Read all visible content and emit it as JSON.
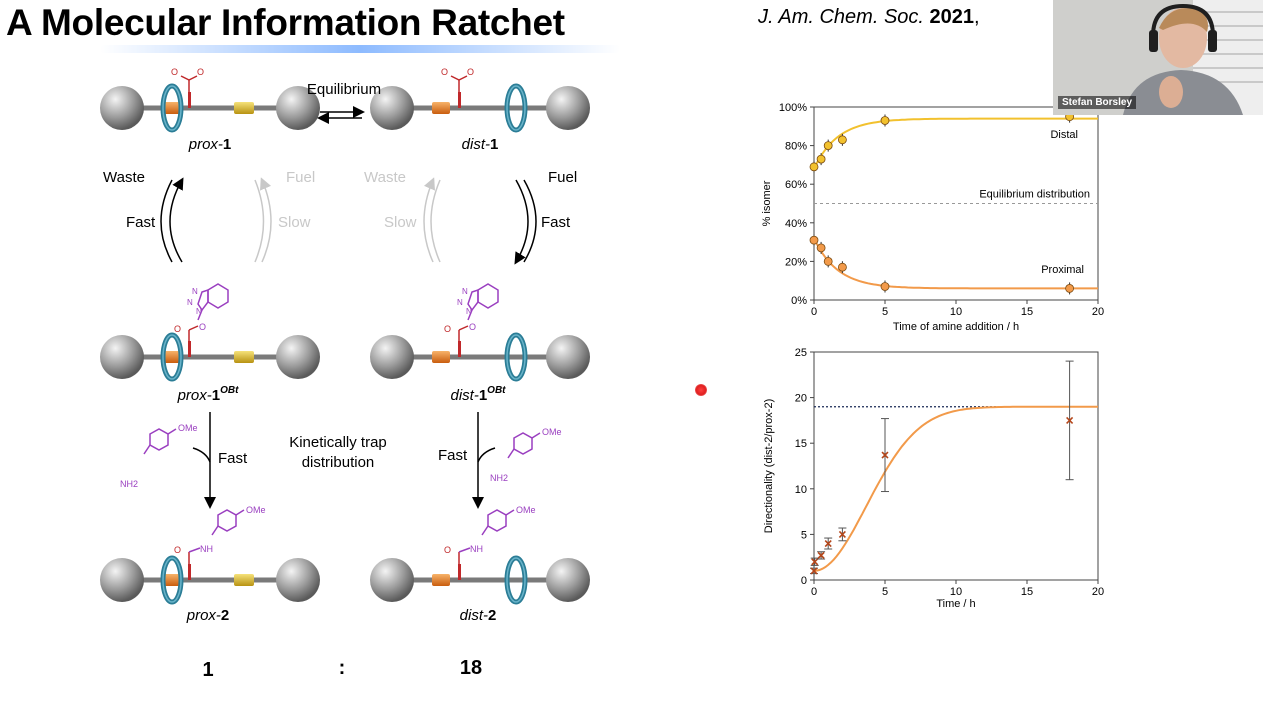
{
  "slide": {
    "title": "A Molecular Information Ratchet",
    "journal": {
      "name": "J. Am. Chem. Soc.",
      "year": "2021",
      "suffix": ","
    }
  },
  "webcam": {
    "name": "Stefan Borsley"
  },
  "scheme": {
    "top_arrow_label": "Equilibrium",
    "prox1": {
      "prefix": "prox-",
      "num": "1"
    },
    "dist1": {
      "prefix": "dist-",
      "num": "1"
    },
    "left_waste": "Waste",
    "left_fast": "Fast",
    "gray_fuel": "Fuel",
    "gray_slow_left": "Slow",
    "gray_waste": "Waste",
    "gray_slow_right": "Slow",
    "right_fuel": "Fuel",
    "right_fast": "Fast",
    "prox1obt": {
      "prefix": "prox-",
      "num": "1",
      "sup": "OBt"
    },
    "dist1obt": {
      "prefix": "dist-",
      "num": "1",
      "sup": "OBt"
    },
    "middle_note_line1": "Kinetically trap",
    "middle_note_line2": "distribution",
    "left_bottom_fast": "Fast",
    "right_bottom_fast": "Fast",
    "prox2": {
      "prefix": "prox-",
      "num": "2"
    },
    "dist2": {
      "prefix": "dist-",
      "num": "2"
    },
    "ratio_left": "1",
    "ratio_colon": ":",
    "ratio_right": "18",
    "chem": {
      "ome": "OMe",
      "nh2": "NH2",
      "nh": "NH",
      "n": "N",
      "o": "O"
    }
  },
  "colors": {
    "ring": "#2b7d96",
    "station_orange": "#e0781e",
    "station_yellow": "#d9b21a",
    "stopper": "#8e8e8e",
    "carbonyl_red": "#c0282a",
    "chem_purple": "#9a3fc0",
    "curve_yellow": "#f2c12e",
    "curve_orange": "#f29a4a"
  },
  "chart_data": [
    {
      "type": "scatter",
      "title": "",
      "xlabel": "Time of amine addition / h",
      "ylabel": "% isomer",
      "xlim": [
        0,
        20
      ],
      "ylim": [
        0,
        100
      ],
      "xticks": [
        "0",
        "5",
        "10",
        "15",
        "20"
      ],
      "yticks": [
        "0%",
        "20%",
        "40%",
        "60%",
        "80%",
        "100%"
      ],
      "series": [
        {
          "name": "Distal",
          "x": [
            0,
            0.5,
            1,
            2,
            5,
            18
          ],
          "y": [
            69,
            73,
            80,
            83,
            93,
            95
          ]
        },
        {
          "name": "Proximal",
          "x": [
            0,
            0.5,
            1,
            2,
            5,
            18
          ],
          "y": [
            31,
            27,
            20,
            17,
            7,
            6
          ]
        }
      ],
      "fits": [
        {
          "series": "Distal",
          "y0": 68,
          "yinf": 94,
          "k": 0.6
        },
        {
          "series": "Proximal",
          "y0": 32,
          "yinf": 6,
          "k": 0.6
        }
      ],
      "reference_line": {
        "label": "Equilibrium distribution",
        "y": 50
      },
      "grid": false
    },
    {
      "type": "scatter",
      "title": "",
      "xlabel": "Time / h",
      "ylabel": "Directionality (dist-2/prox-2)",
      "xlim": [
        0,
        20
      ],
      "ylim": [
        0,
        25
      ],
      "xticks": [
        "0",
        "5",
        "10",
        "15",
        "20"
      ],
      "yticks": [
        "0",
        "5",
        "10",
        "15",
        "20",
        "25"
      ],
      "points": [
        {
          "x": 0,
          "y": 1.0,
          "err": 0.3
        },
        {
          "x": 0.05,
          "y": 2.0,
          "err": 0.4
        },
        {
          "x": 0.5,
          "y": 2.7,
          "err": 0.4
        },
        {
          "x": 1,
          "y": 4.0,
          "err": 0.6
        },
        {
          "x": 2,
          "y": 5.0,
          "err": 0.7
        },
        {
          "x": 5,
          "y": 13.7,
          "err": 4.0
        },
        {
          "x": 18,
          "y": 17.5,
          "err": 6.5
        }
      ],
      "reference_line": {
        "y": 19
      },
      "grid": false
    }
  ]
}
